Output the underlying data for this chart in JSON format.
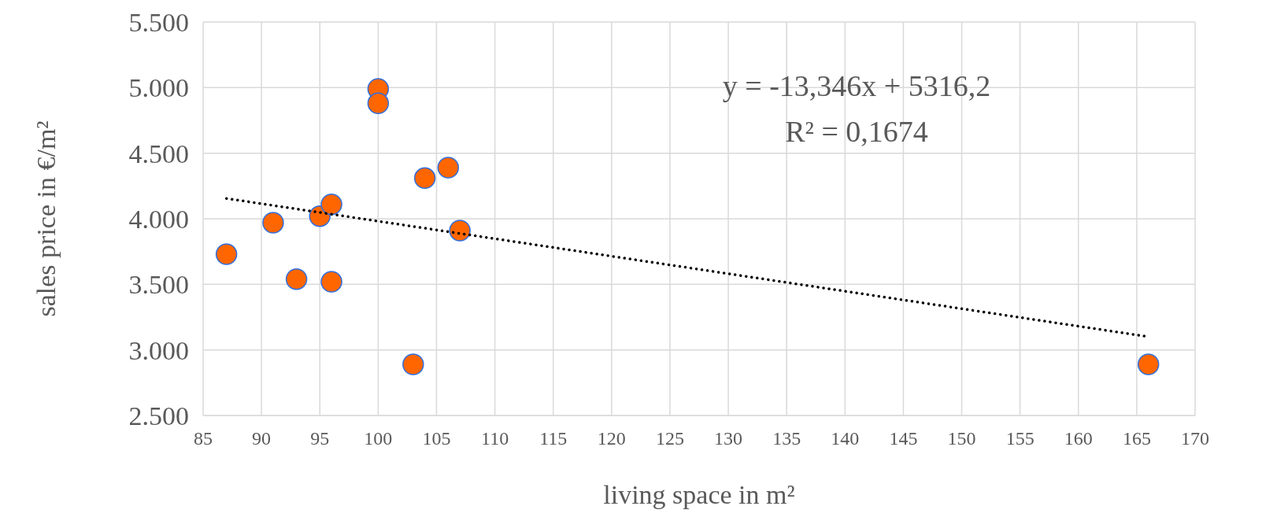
{
  "chart_data": {
    "type": "scatter",
    "xlabel": "living space in m²",
    "ylabel": "sales price in €/m²",
    "x": [
      87,
      91,
      93,
      95,
      96,
      96,
      100,
      100,
      103,
      104,
      106,
      107,
      166
    ],
    "series": [
      {
        "color": "#ff6600",
        "marker": "circle",
        "values": [
          3730,
          3970,
          3540,
          4020,
          4110,
          3520,
          4990,
          4880,
          2890,
          4310,
          4390,
          3910,
          2890
        ]
      },
      {
        "type": "line",
        "color": "#000000",
        "marker": "none",
        "line_style": "dotted",
        "x": [
          87,
          166
        ],
        "values": [
          4155,
          3101
        ]
      }
    ],
    "xlim": [
      85,
      170
    ],
    "xticks": [
      85,
      90,
      95,
      100,
      105,
      110,
      115,
      120,
      125,
      130,
      135,
      140,
      145,
      150,
      155,
      160,
      165,
      170
    ],
    "ylim": [
      2500,
      5500
    ],
    "yticks": [
      {
        "value": 2500,
        "label": "2.500"
      },
      {
        "value": 3000,
        "label": "3.000"
      },
      {
        "value": 3500,
        "label": "3.500"
      },
      {
        "value": 4000,
        "label": "4.000"
      },
      {
        "value": 4500,
        "label": "4.500"
      },
      {
        "value": 5000,
        "label": "5.000"
      },
      {
        "value": 5500,
        "label": "5.500"
      }
    ],
    "grid": true,
    "annotations": [
      "y = -13,346x + 5316,2",
      "R² = 0,1674"
    ]
  }
}
